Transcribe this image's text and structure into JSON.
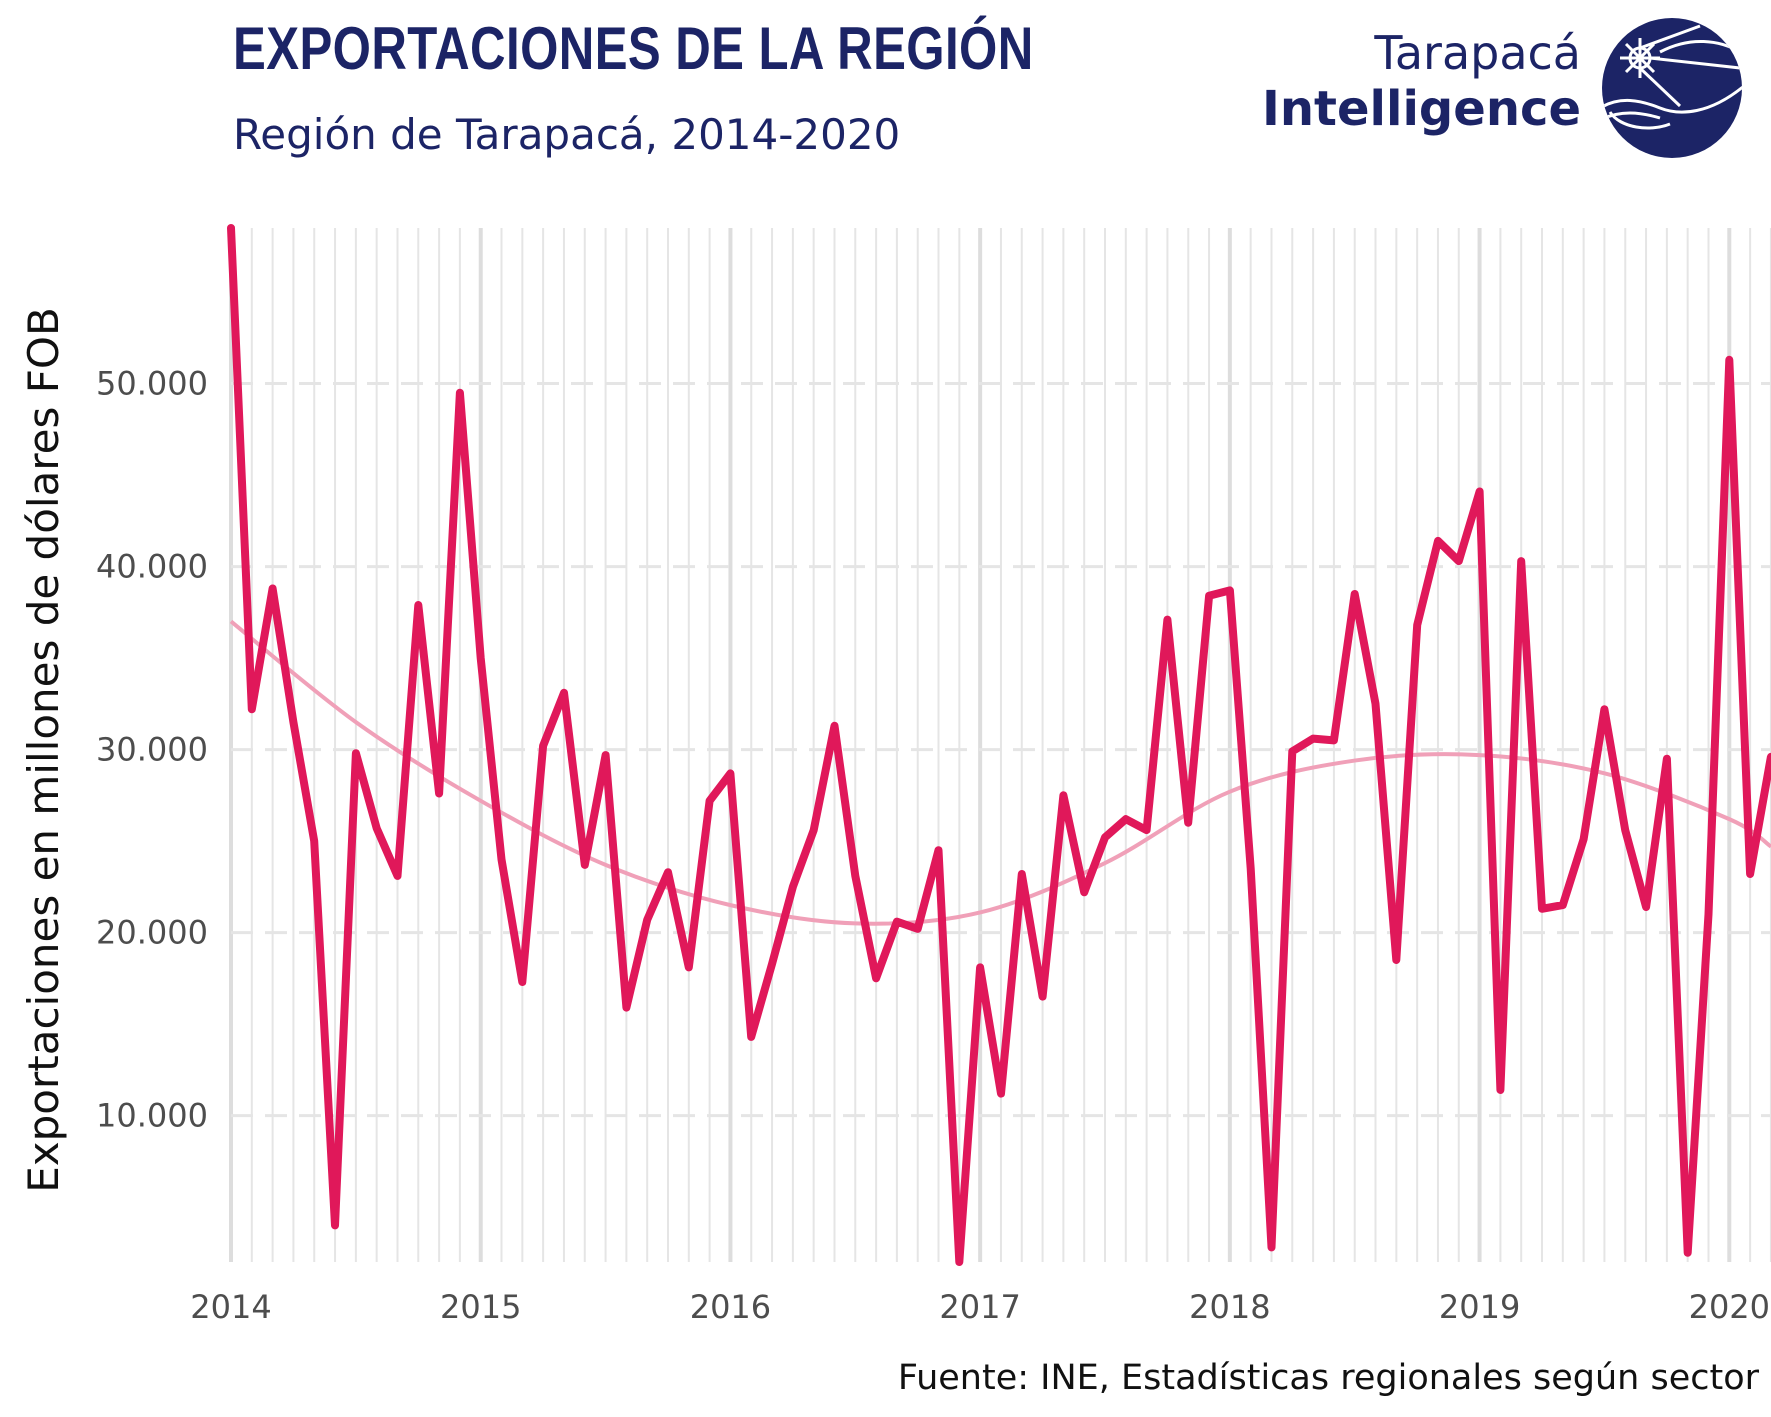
{
  "header": {
    "title": "EXPORTACIONES DE LA REGIÓN",
    "subtitle": "Región de Tarapacá, 2014-2020"
  },
  "logo": {
    "line1": "Tarapacá",
    "line2": "Intelligence",
    "color": "#1c2466"
  },
  "caption": "Fuente: INE, Estadísticas regionales según sector",
  "colors": {
    "series": "#e0185a",
    "trend": "#f0a0b8",
    "grid": "#e5e5e5",
    "text": "#1c2466"
  },
  "chart_data": {
    "type": "line",
    "ylabel": "Exportaciones en millones de dólares FOB",
    "xlabel": "",
    "xlim": [
      2014.0,
      2020.167
    ],
    "ylim": [
      2000,
      58500
    ],
    "x_ticks": [
      2014,
      2015,
      2016,
      2017,
      2018,
      2019,
      2020
    ],
    "x_tick_labels": [
      "2014",
      "2015",
      "2016",
      "2017",
      "2018",
      "2019",
      "2020"
    ],
    "y_ticks": [
      10000,
      20000,
      30000,
      40000,
      50000
    ],
    "y_tick_labels": [
      "10.000",
      "20.000",
      "30.000",
      "40.000",
      "50.000"
    ],
    "grid": {
      "major_x": true,
      "minor_x_monthly": true,
      "y_dashed": true
    },
    "series": [
      {
        "start": "2014-01",
        "frequency": "monthly",
        "values": [
          58500,
          32200,
          38800,
          31500,
          25000,
          4000,
          29800,
          25700,
          23100,
          37900,
          27600,
          49500,
          35000,
          24000,
          17300,
          30200,
          33100,
          23700,
          29700,
          15900,
          20700,
          23300,
          18100,
          27200,
          28700,
          14300,
          18300,
          22500,
          25600,
          31300,
          23100,
          17500,
          20600,
          20200,
          24500,
          2000,
          18100,
          11200,
          23200,
          16500,
          27500,
          22200,
          25200,
          26200,
          25600,
          37100,
          26000,
          38400,
          38700,
          23500,
          2800,
          29900,
          30600,
          30500,
          38500,
          32500,
          18500,
          36800,
          41400,
          40300,
          44100,
          11400,
          40300,
          21300,
          21500,
          25100,
          32200,
          25600,
          21400,
          29500,
          2500,
          21000,
          51300,
          23200,
          29600
        ]
      },
      {
        "values_at_years": {
          "x": [
            2014.0,
            2014.5,
            2015.0,
            2015.5,
            2016.0,
            2016.5,
            2017.0,
            2017.5,
            2018.0,
            2018.5,
            2019.0,
            2019.5,
            2020.0,
            2020.167
          ],
          "y": [
            37000,
            31500,
            27200,
            23700,
            21500,
            20500,
            21100,
            23800,
            27700,
            29400,
            29700,
            28700,
            26200,
            24700
          ]
        }
      }
    ]
  }
}
